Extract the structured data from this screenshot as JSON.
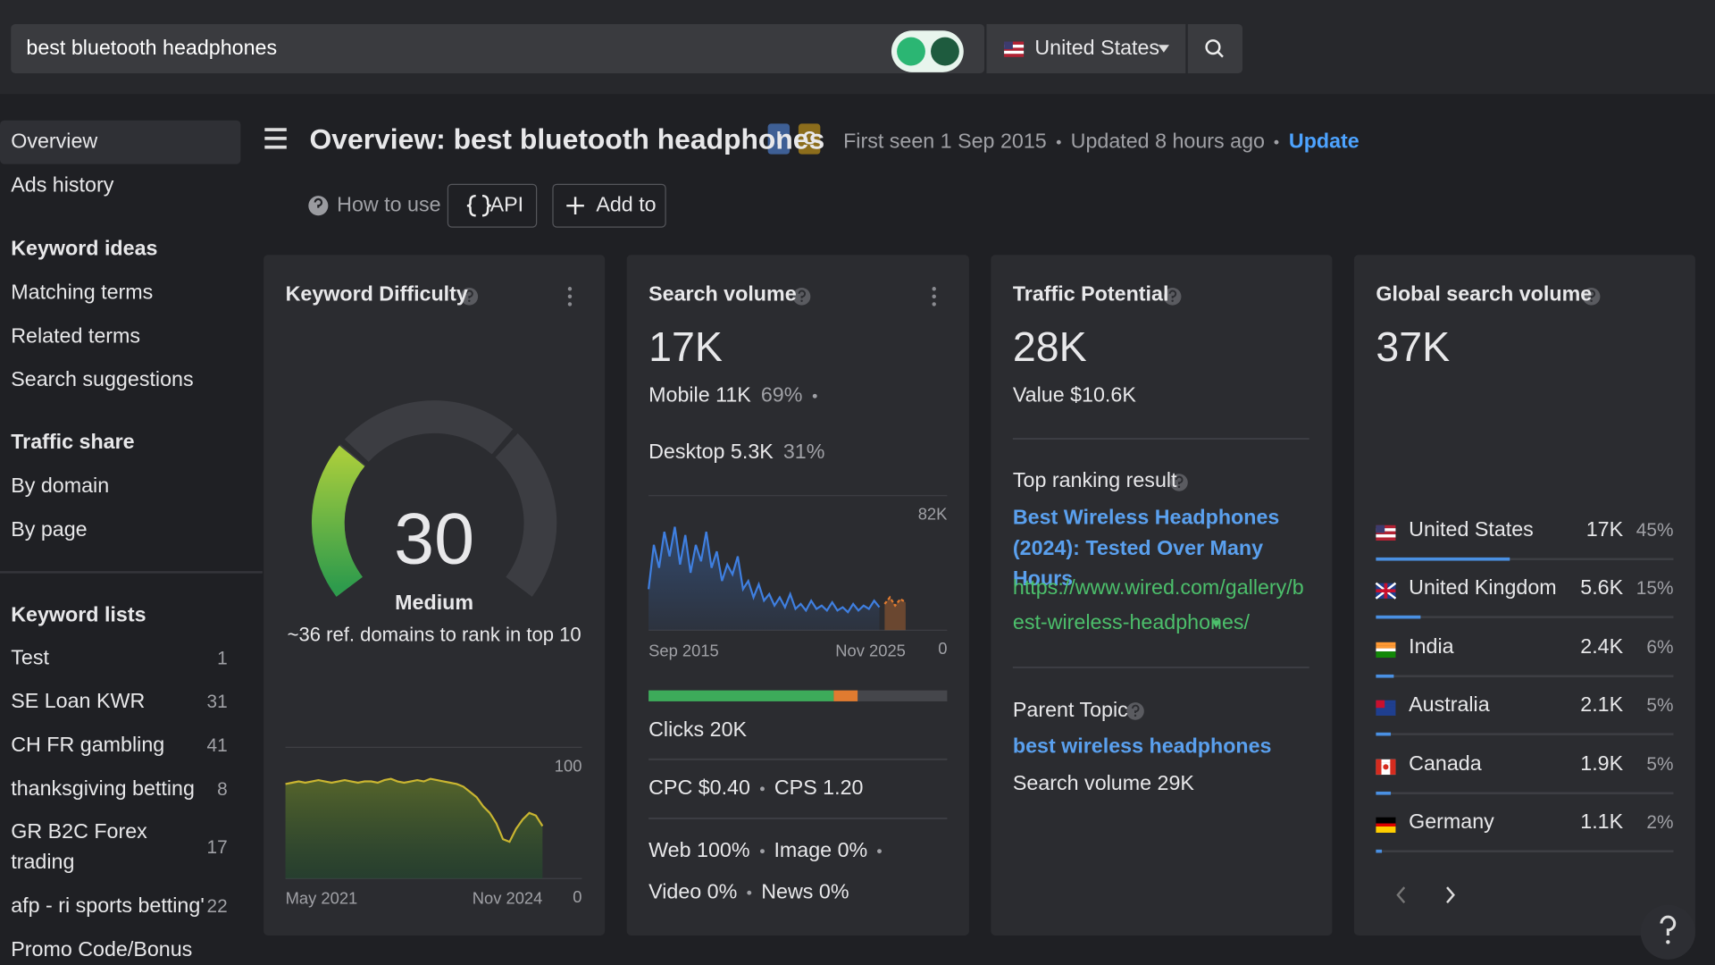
{
  "search_bar": {
    "query": "best bluetooth headphones",
    "country": "United States"
  },
  "sidebar": {
    "top": [
      "Overview",
      "Ads history"
    ],
    "sections": [
      {
        "title": "Keyword ideas",
        "items": [
          "Matching terms",
          "Related terms",
          "Search suggestions"
        ]
      },
      {
        "title": "Traffic share",
        "items": [
          "By domain",
          "By page"
        ]
      }
    ],
    "keyword_lists": {
      "title": "Keyword lists",
      "items": [
        {
          "name": "Test",
          "count": 1
        },
        {
          "name": "SE Loan KWR",
          "count": 31
        },
        {
          "name": "CH FR gambling",
          "count": 41
        },
        {
          "name": "thanksgiving betting",
          "count": 8
        },
        {
          "name": "GR B2C Forex trading",
          "count": 17
        },
        {
          "name": "afp - ri sports betting'",
          "count": 22
        },
        {
          "name": "Promo Code/Bonus"
        }
      ]
    }
  },
  "header": {
    "title": "Overview: best bluetooth headphones",
    "badges": [
      "I",
      "C"
    ],
    "first_seen": "First seen 1 Sep 2015",
    "updated": "Updated 8 hours ago",
    "update_link": "Update",
    "how_to_use": "How to use",
    "api": "API",
    "add_to": "Add to"
  },
  "cards": {
    "keyword_difficulty": {
      "title": "Keyword Difficulty",
      "chart_data": {
        "type": "gauge",
        "value": 30,
        "ylim": [
          0,
          100
        ]
      },
      "level": "Medium",
      "note": "~36 ref. domains to rank in top 10",
      "history": {
        "type": "area",
        "color": "#c9b531",
        "values": [
          72,
          73,
          74,
          73,
          74,
          75,
          74,
          73,
          74,
          75,
          74,
          73,
          74,
          74,
          73,
          75,
          76,
          74,
          73,
          74,
          75,
          74,
          76,
          75,
          74,
          73,
          72,
          70,
          66,
          62,
          55,
          50,
          42,
          30,
          28,
          38,
          45,
          50,
          48,
          40
        ],
        "ylim": [
          0,
          100
        ],
        "yticks": [
          0,
          100
        ],
        "x_labels": [
          "May 2021",
          "Nov 2024"
        ]
      }
    },
    "search_volume": {
      "title": "Search volume",
      "value": "17K",
      "mobile": {
        "label": "Mobile 11K",
        "share": "69%"
      },
      "desktop": {
        "label": "Desktop 5.3K",
        "share": "31%"
      },
      "history": {
        "type": "line",
        "color": "#3f7fe0",
        "forecast_color": "#e07b30",
        "values": [
          25000,
          52000,
          38000,
          60000,
          45000,
          63000,
          40000,
          58000,
          35000,
          52000,
          42000,
          60000,
          38000,
          48000,
          30000,
          40000,
          34000,
          45000,
          25000,
          30000,
          20000,
          28000,
          18000,
          22000,
          15000,
          20000,
          14000,
          22000,
          13000,
          16000,
          12000,
          18000,
          13000,
          15000,
          12000,
          17000,
          12000,
          14000,
          11000,
          16000,
          12000,
          15000,
          13000,
          18000,
          14000
        ],
        "forecast": [
          16000,
          20000,
          15000,
          19000,
          17000
        ],
        "ylim": [
          0,
          82000
        ],
        "yticks": [
          0,
          {
            "value": 82000,
            "label": "82K"
          }
        ],
        "x_labels": [
          "Sep 2015",
          "Nov 2025"
        ]
      },
      "clicks_bar": {
        "values": [
          62,
          8
        ]
      },
      "clicks": "Clicks 20K",
      "cpc": "CPC $0.40",
      "cps": "CPS 1.20",
      "serp": [
        "Web 100%",
        "Image 0%",
        "Video 0%",
        "News 0%"
      ]
    },
    "traffic_potential": {
      "title": "Traffic Potential",
      "value": "28K",
      "value_usd": "Value $10.6K",
      "top_result_label": "Top ranking result",
      "top_result_title": "Best Wireless Headphones (2024): Tested Over Many Hours",
      "top_result_url": "https://www.wired.com/gallery/best-wireless-headphones/",
      "parent_topic_label": "Parent Topic",
      "parent_topic": "best wireless headphones",
      "parent_volume": "Search volume 29K"
    },
    "global_volume": {
      "title": "Global search volume",
      "value": "37K",
      "color": "#4a90e2",
      "countries": [
        {
          "name": "United States",
          "volume": "17K",
          "share": 45,
          "share_label": "45%"
        },
        {
          "name": "United Kingdom",
          "volume": "5.6K",
          "share": 15,
          "share_label": "15%"
        },
        {
          "name": "India",
          "volume": "2.4K",
          "share": 6,
          "share_label": "6%"
        },
        {
          "name": "Australia",
          "volume": "2.1K",
          "share": 5,
          "share_label": "5%"
        },
        {
          "name": "Canada",
          "volume": "1.9K",
          "share": 5,
          "share_label": "5%"
        },
        {
          "name": "Germany",
          "volume": "1.1K",
          "share": 2,
          "share_label": "2%"
        }
      ]
    }
  }
}
